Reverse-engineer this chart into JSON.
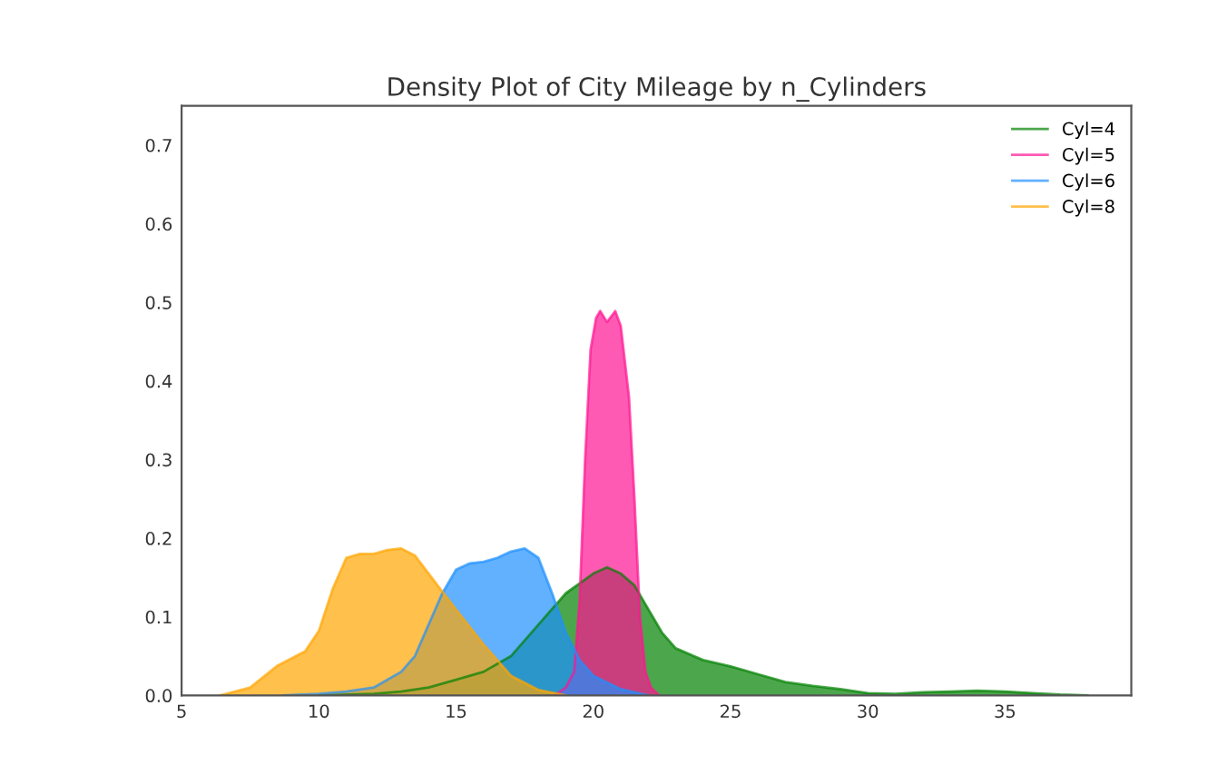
{
  "chart_data": {
    "type": "area",
    "title": "Density Plot of City Mileage by n_Cylinders",
    "xlim": [
      5,
      39.6
    ],
    "xticks": [
      5,
      10,
      15,
      20,
      25,
      30,
      35
    ],
    "ylim": [
      0,
      0.75
    ],
    "yticks": [
      {
        "value": 0,
        "label": "0.0"
      },
      0.1,
      0.2,
      0.3,
      0.4,
      0.5,
      0.6,
      0.7
    ],
    "grid": false,
    "legend": "top right",
    "series": [
      {
        "name": "Cyl=4",
        "color": "#008000",
        "x": [
          10,
          12,
          13,
          14,
          15,
          16,
          17,
          18,
          19,
          20,
          20.5,
          21,
          21.5,
          22,
          22.5,
          23,
          24,
          25,
          26,
          27,
          28,
          29,
          30,
          31,
          32,
          33,
          34,
          35,
          36,
          37,
          38
        ],
        "values": [
          0,
          0.002,
          0.005,
          0.01,
          0.02,
          0.03,
          0.05,
          0.09,
          0.13,
          0.155,
          0.163,
          0.155,
          0.14,
          0.11,
          0.08,
          0.06,
          0.045,
          0.037,
          0.027,
          0.017,
          0.012,
          0.008,
          0.003,
          0.002,
          0.004,
          0.005,
          0.006,
          0.005,
          0.003,
          0.001,
          0
        ]
      },
      {
        "name": "Cyl=5",
        "color": "#ff1493",
        "x": [
          18.6,
          19.0,
          19.3,
          19.5,
          19.7,
          19.9,
          20.1,
          20.25,
          20.5,
          20.8,
          21.0,
          21.3,
          21.5,
          21.7,
          21.9,
          22.1,
          22.4
        ],
        "values": [
          0,
          0.01,
          0.03,
          0.12,
          0.3,
          0.44,
          0.48,
          0.489,
          0.475,
          0.489,
          0.47,
          0.38,
          0.25,
          0.1,
          0.03,
          0.01,
          0
        ]
      },
      {
        "name": "Cyl=6",
        "color": "#1e90ff",
        "x": [
          8.7,
          10,
          11,
          12,
          13,
          13.5,
          14,
          14.5,
          15,
          15.5,
          16,
          16.5,
          17,
          17.5,
          18,
          18.5,
          19,
          19.5,
          20,
          21,
          22
        ],
        "values": [
          0,
          0.002,
          0.005,
          0.01,
          0.03,
          0.05,
          0.09,
          0.13,
          0.16,
          0.168,
          0.17,
          0.175,
          0.183,
          0.187,
          0.175,
          0.13,
          0.08,
          0.045,
          0.025,
          0.008,
          0
        ]
      },
      {
        "name": "Cyl=8",
        "color": "#ffa500",
        "x": [
          6.4,
          7.5,
          8.5,
          9.5,
          10,
          10.5,
          11,
          11.5,
          12,
          12.5,
          13,
          13.5,
          14,
          15,
          16,
          17,
          18,
          19
        ],
        "values": [
          0,
          0.01,
          0.038,
          0.056,
          0.082,
          0.135,
          0.175,
          0.18,
          0.18,
          0.185,
          0.187,
          0.178,
          0.155,
          0.109,
          0.065,
          0.025,
          0.007,
          0
        ]
      }
    ]
  }
}
